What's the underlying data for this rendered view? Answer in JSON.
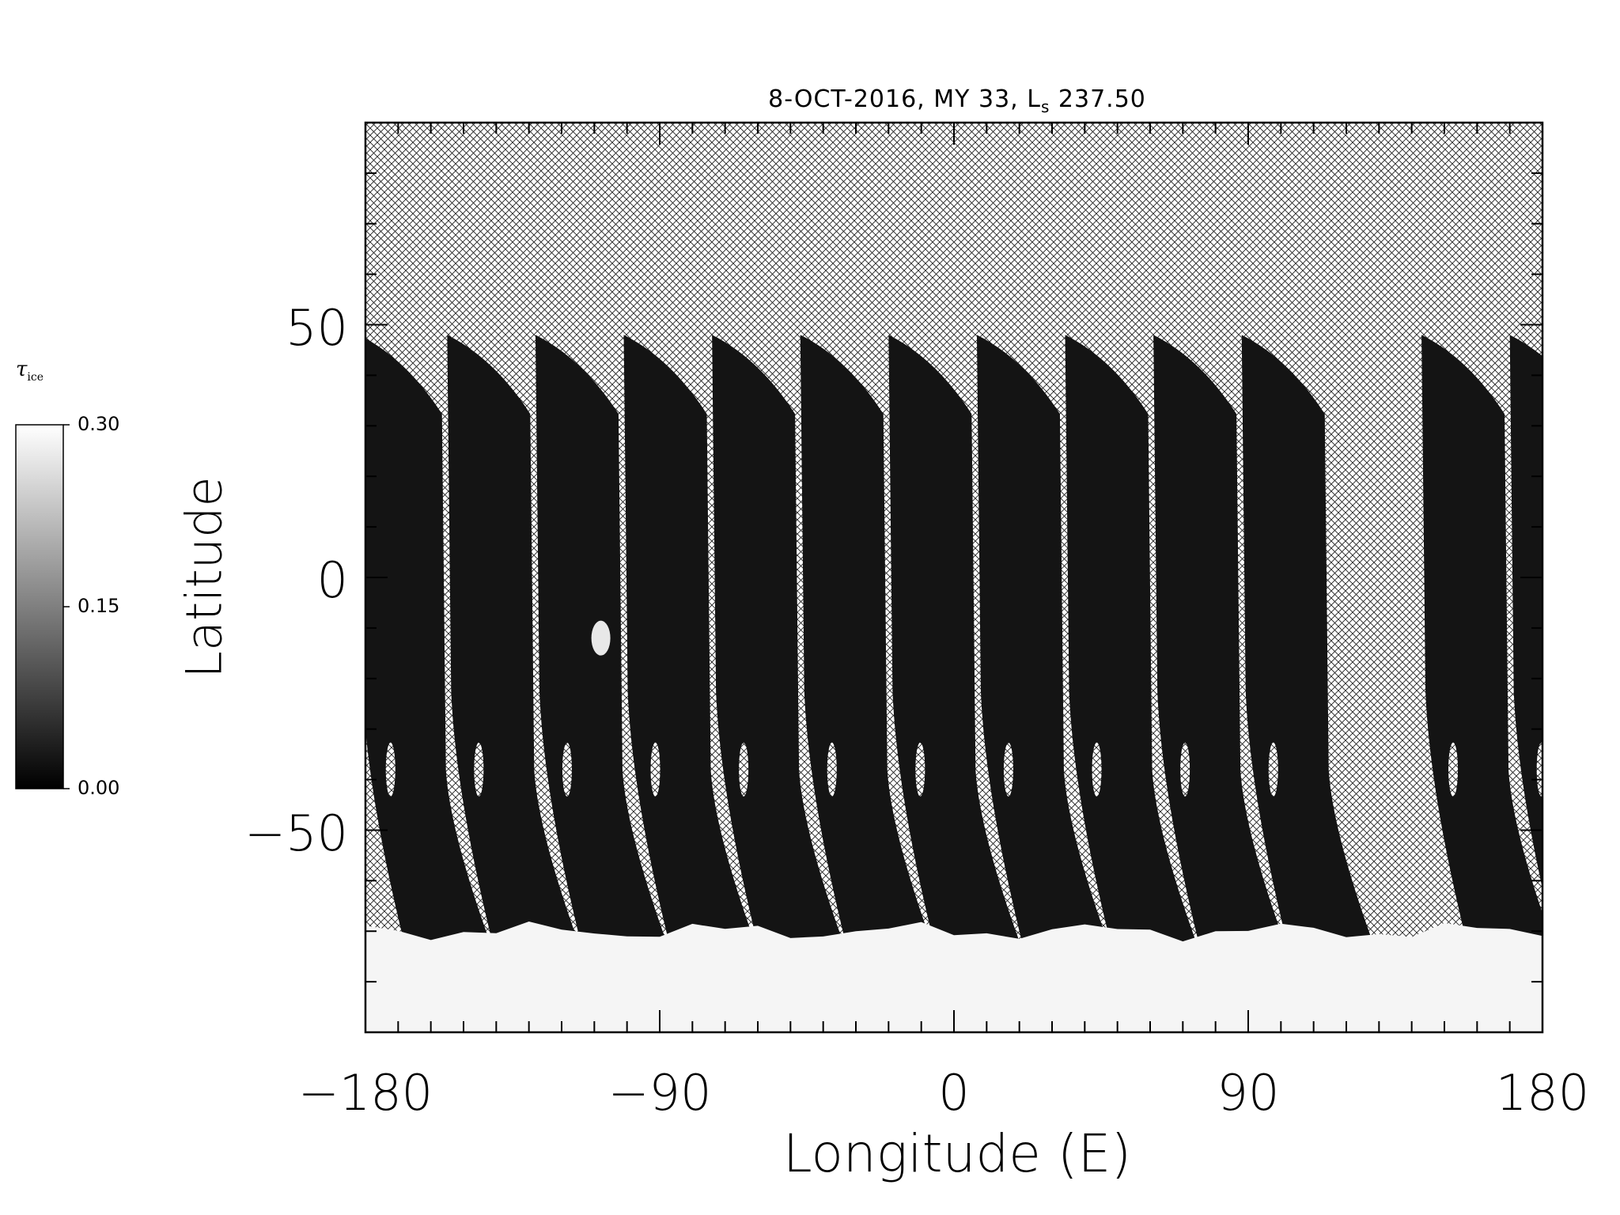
{
  "chart_data": {
    "type": "heatmap",
    "title_main": "8-OCT-2016, MY 33,  L",
    "title_sub": "s",
    "title_value": " 237.50",
    "xlabel": "Longitude (E)",
    "ylabel": "Latitude",
    "xlim": [
      -180,
      180
    ],
    "ylim": [
      -90,
      90
    ],
    "x_ticks": [
      "-180",
      "-90",
      "0",
      "90",
      "180"
    ],
    "x_tick_values": [
      -180,
      -90,
      0,
      90,
      180
    ],
    "y_ticks": [
      "50",
      "0",
      "-50"
    ],
    "y_tick_values": [
      50,
      0,
      -50
    ],
    "colorbar": {
      "label": "τ",
      "label_sub": "ice",
      "range": [
        0.0,
        0.3
      ],
      "ticks": [
        "0.30",
        "0.15",
        "0.00"
      ],
      "tick_values": [
        0.3,
        0.15,
        0.0
      ],
      "colormap": "grayscale"
    },
    "missing_data_pattern": "crosshatch",
    "swath_left_longitudes": [
      -182,
      -155,
      -128,
      -101,
      -74,
      -47,
      -20,
      7,
      34,
      61,
      88,
      143,
      170
    ],
    "swath_top_latitude": 48,
    "south_polar_ice_lat": -70
  }
}
